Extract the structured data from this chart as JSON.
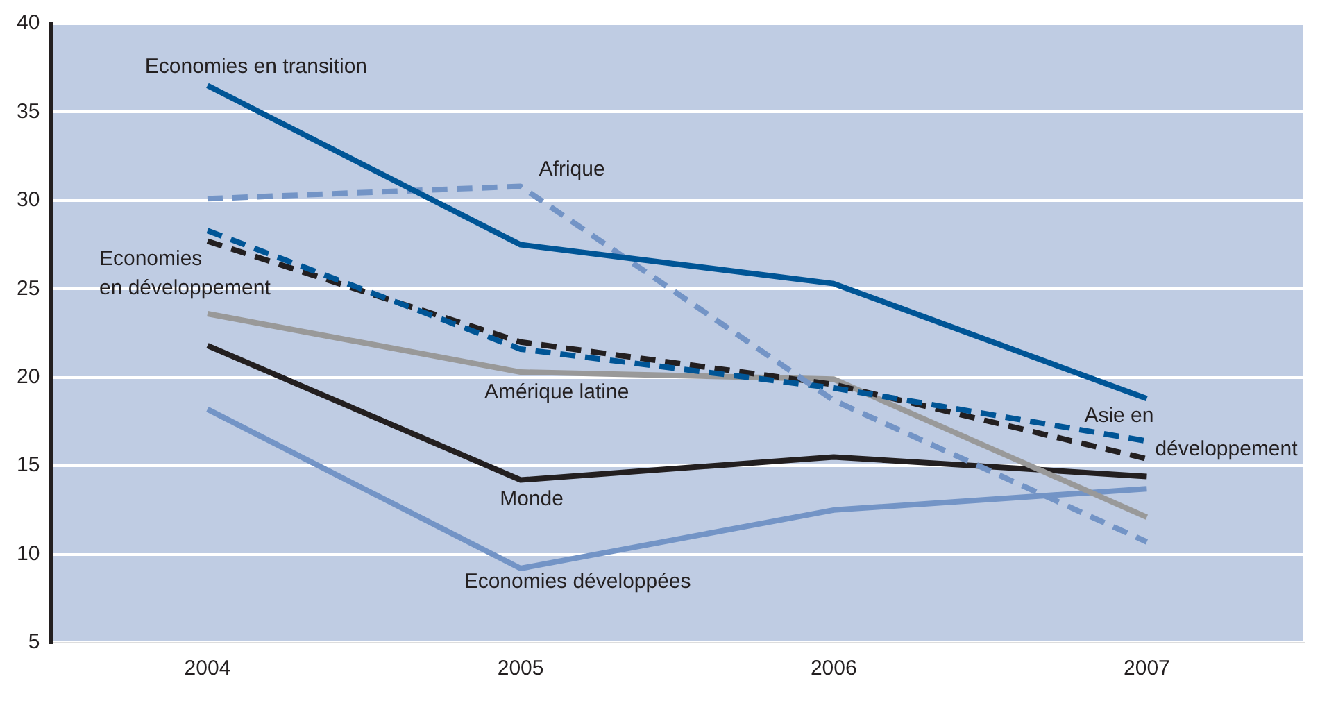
{
  "chart_data": {
    "type": "line",
    "categories": [
      "2004",
      "2005",
      "2006",
      "2007"
    ],
    "ylim": [
      5,
      40
    ],
    "yticks": [
      5,
      10,
      15,
      20,
      25,
      30,
      35,
      40
    ],
    "grid": "y",
    "legend": false,
    "marker": "none",
    "series": [
      {
        "name": "Economies en transition",
        "color": "#005596",
        "line_style": "solid",
        "values": [
          36.5,
          27.5,
          25.3,
          18.8
        ]
      },
      {
        "name": "Afrique",
        "color": "#7394c6",
        "line_style": "dashed",
        "values": [
          30.1,
          30.8,
          18.7,
          10.7
        ]
      },
      {
        "name": "Asie en\ndéveloppement",
        "color": "#005596",
        "line_style": "dashed",
        "values": [
          28.3,
          21.6,
          19.4,
          16.4
        ]
      },
      {
        "name": "Economies\nen développement",
        "color": "#231f20",
        "line_style": "dashed",
        "values": [
          27.7,
          22.0,
          19.6,
          15.4
        ]
      },
      {
        "name": "Amérique latine",
        "color": "#999999",
        "line_style": "solid",
        "values": [
          23.6,
          20.3,
          19.9,
          12.1
        ]
      },
      {
        "name": "Monde",
        "color": "#231f20",
        "line_style": "solid",
        "values": [
          21.8,
          14.2,
          15.5,
          14.4
        ]
      },
      {
        "name": "Economies développées",
        "color": "#7394c6",
        "line_style": "solid",
        "values": [
          18.2,
          9.2,
          12.5,
          13.7
        ]
      }
    ]
  }
}
